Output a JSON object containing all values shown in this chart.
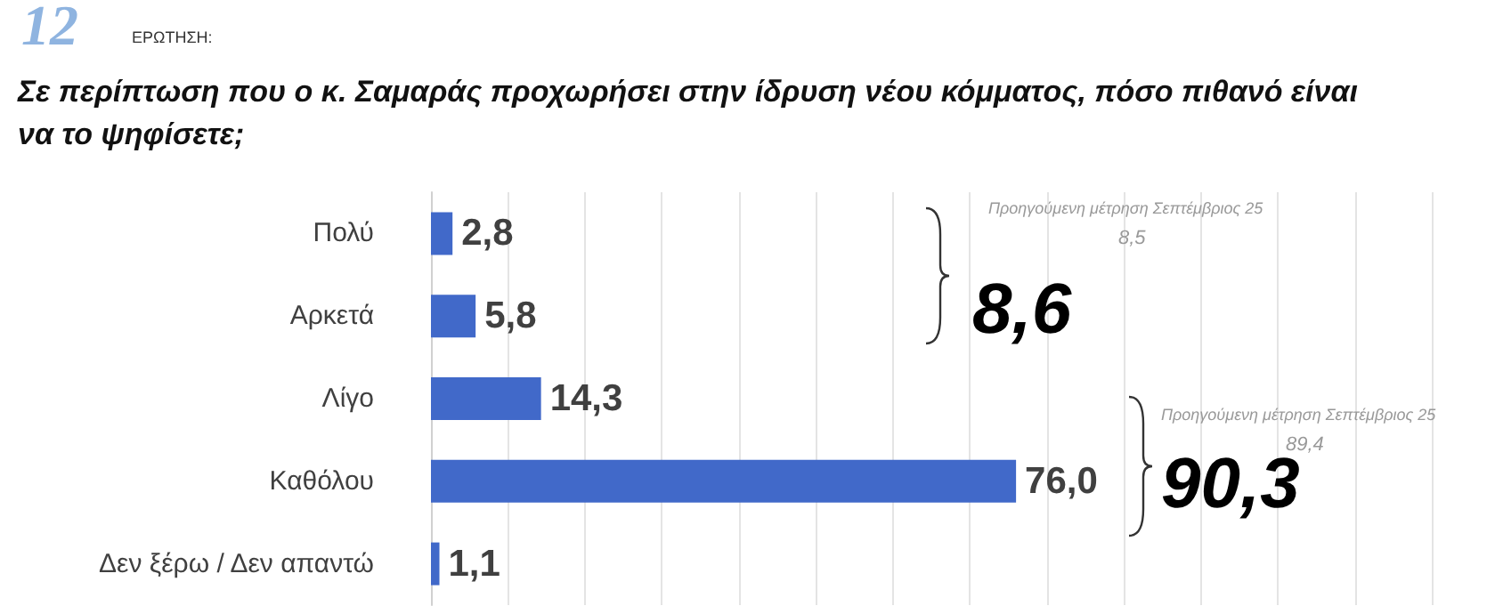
{
  "chart_data": {
    "type": "bar",
    "orientation": "horizontal",
    "title": "Σε περίπτωση που ο κ. Σαμαράς προχωρήσει στην ίδρυση νέου κόμματος, πόσο πιθανό είναι να το ψηφίσετε;",
    "categories": [
      "Πολύ",
      "Αρκετά",
      "Λίγο",
      "Καθόλου",
      "Δεν ξέρω / Δεν απαντώ"
    ],
    "values": [
      2.8,
      5.8,
      14.3,
      76.0,
      1.1
    ],
    "value_labels": [
      "2,8",
      "5,8",
      "14,3",
      "76,0",
      "1,1"
    ],
    "color": "#4169c9",
    "xlim": [
      0,
      130
    ],
    "xticks": [
      {
        "value": 0,
        "label": null
      },
      {
        "value": 10,
        "label": null
      },
      {
        "value": 20,
        "label": null
      },
      {
        "value": 30,
        "label": null
      },
      {
        "value": 40,
        "label": null
      },
      {
        "value": 50,
        "label": null
      },
      {
        "value": 60,
        "label": null
      },
      {
        "value": 70,
        "label": null
      },
      {
        "value": 80,
        "label": null
      },
      {
        "value": 90,
        "label": null
      },
      {
        "value": 100,
        "label": null
      },
      {
        "value": 110,
        "label": null
      },
      {
        "value": 120,
        "label": null
      },
      {
        "value": 130,
        "label": null
      }
    ],
    "grid": "x",
    "tick_labels": "y",
    "annotations": [
      "12",
      "ΕΡΩΤΗΣΗ:",
      "Προηγούμενη μέτρηση Σεπτέμβριος 25",
      "8,5",
      "8,6",
      "Προηγούμενη μέτρηση Σεπτέμβριος 25",
      "89,4",
      "90,3"
    ]
  }
}
